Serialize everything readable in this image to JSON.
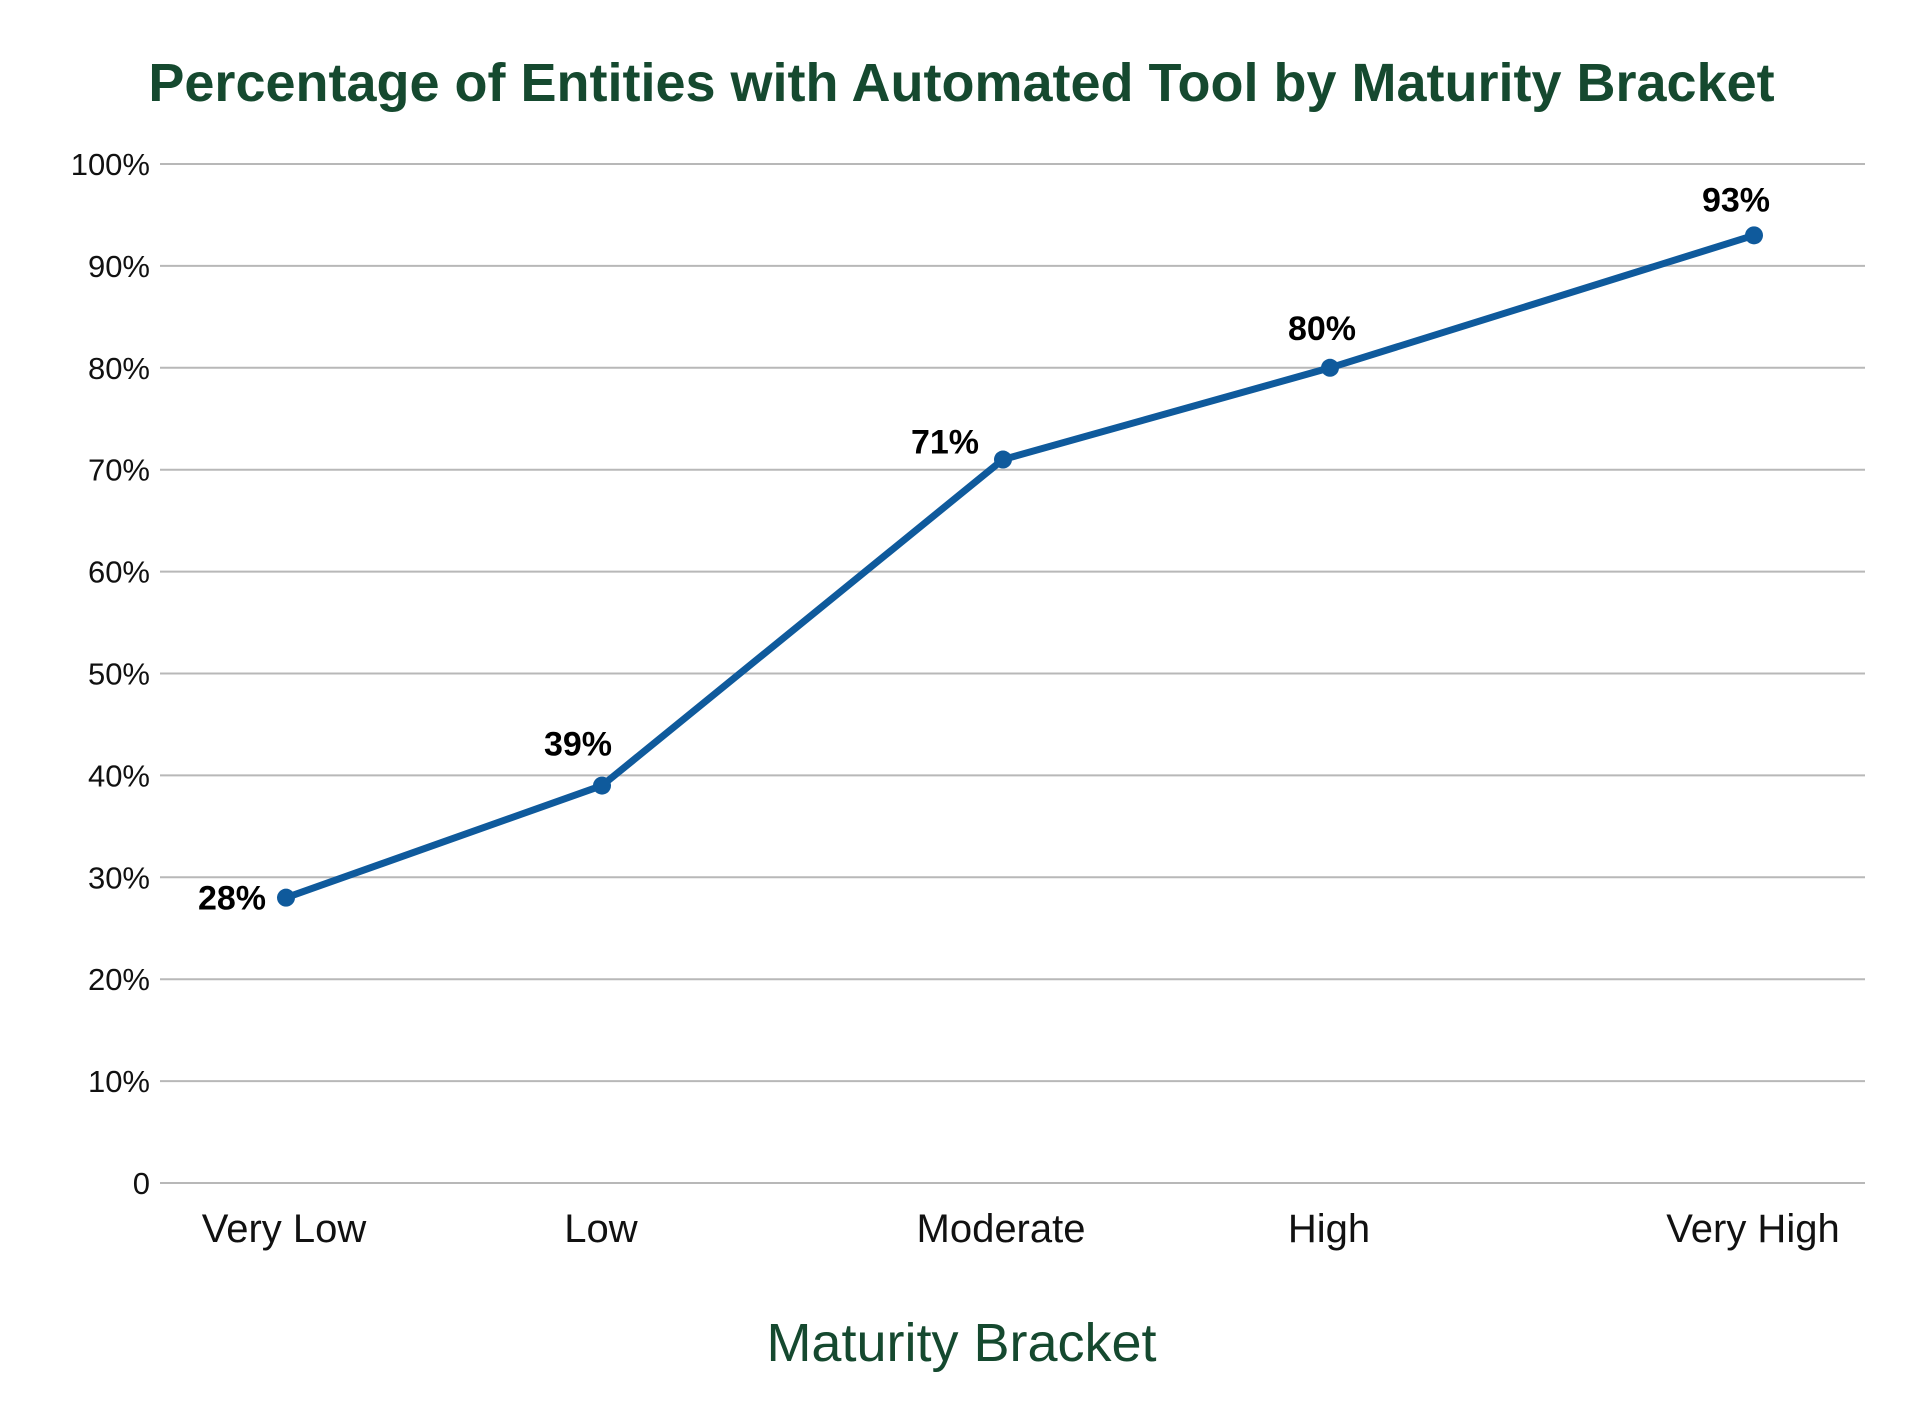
{
  "chart_data": {
    "type": "line",
    "title": "Percentage of Entities with Automated Tool by Maturity Bracket",
    "xlabel": "Maturity Bracket",
    "ylabel": "",
    "categories": [
      "Very Low",
      "Low",
      "Moderate",
      "High",
      "Very High"
    ],
    "series": [
      {
        "values": [
          28,
          39,
          71,
          80,
          93
        ],
        "labels": [
          "28%",
          "39%",
          "71%",
          "80%",
          "93%"
        ],
        "color": "#0f5a9c"
      }
    ],
    "ylim": [
      0,
      100
    ],
    "y_ticks": [
      {
        "value": 0,
        "label": "0"
      },
      {
        "value": 10,
        "label": "10%"
      },
      {
        "value": 20,
        "label": "20%"
      },
      {
        "value": 30,
        "label": "30%"
      },
      {
        "value": 40,
        "label": "40%"
      },
      {
        "value": 50,
        "label": "50%"
      },
      {
        "value": 60,
        "label": "60%"
      },
      {
        "value": 70,
        "label": "70%"
      },
      {
        "value": 80,
        "label": "80%"
      },
      {
        "value": 90,
        "label": "90%"
      },
      {
        "value": 100,
        "label": "100%"
      }
    ],
    "grid": true,
    "legend": "none",
    "colors": {
      "title": "#15492f",
      "axis_title": "#15492f",
      "gridline": "#b8b8b8",
      "line": "#0f5a9c"
    }
  }
}
